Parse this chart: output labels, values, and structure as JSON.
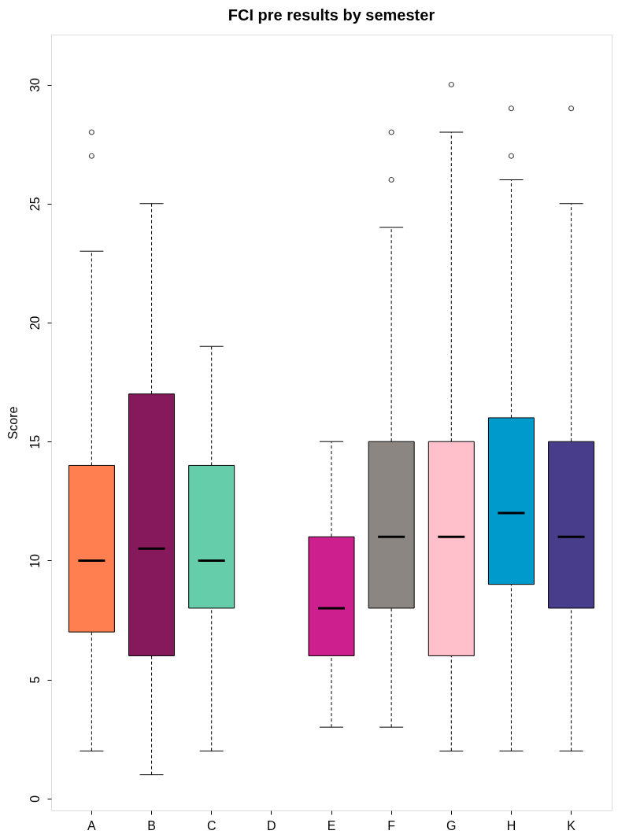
{
  "chart_data": {
    "type": "box",
    "title": "FCI pre results by semester",
    "ylabel": "Score",
    "categories": [
      "A",
      "B",
      "C",
      "D",
      "E",
      "F",
      "G",
      "H",
      "K"
    ],
    "colors": [
      "#ff7f50",
      "#85195c",
      "#66cdaa",
      null,
      "#cd1f8e",
      "#8b8682",
      "#ffc0cb",
      "#009acd",
      "#483d8b"
    ],
    "boxes": [
      {
        "low": 2,
        "q1": 7,
        "median": 10,
        "q3": 14,
        "high": 23,
        "outliers": [
          27,
          28
        ]
      },
      {
        "low": 1,
        "q1": 6,
        "median": 10.5,
        "q3": 17,
        "high": 25
      },
      {
        "low": 2,
        "q1": 8,
        "median": 10,
        "q3": 14,
        "high": 19
      },
      null,
      {
        "low": 3,
        "q1": 6,
        "median": 8,
        "q3": 11,
        "high": 15
      },
      {
        "low": 3,
        "q1": 8,
        "median": 11,
        "q3": 15,
        "high": 24,
        "outliers": [
          26,
          28
        ]
      },
      {
        "low": 2,
        "q1": 6,
        "median": 11,
        "q3": 15,
        "high": 28,
        "outliers": [
          30
        ]
      },
      {
        "low": 2,
        "q1": 9,
        "median": 12,
        "q3": 16,
        "high": 26,
        "outliers": [
          27,
          29
        ]
      },
      {
        "low": 2,
        "q1": 8,
        "median": 11,
        "q3": 15,
        "high": 25,
        "outliers": [
          29
        ]
      }
    ],
    "ylim": [
      -0.5,
      32.1
    ],
    "yticks": [
      0,
      5,
      10,
      15,
      20,
      25,
      30
    ]
  }
}
